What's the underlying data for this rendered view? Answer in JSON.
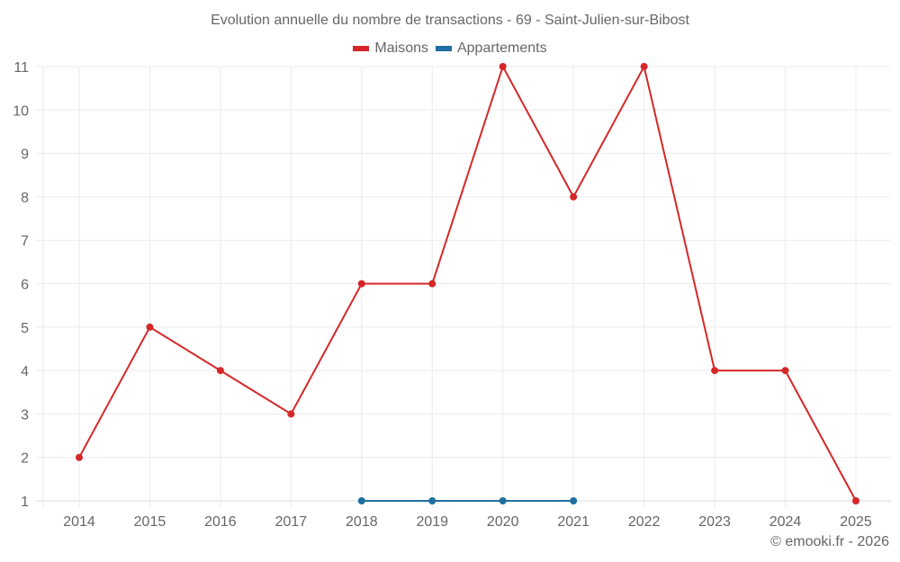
{
  "title": "Evolution annuelle du nombre de transactions - 69 - Saint-Julien-sur-Bibost",
  "credit": "© emooki.fr - 2026",
  "legend": [
    {
      "label": "Maisons",
      "color": "#d62728"
    },
    {
      "label": "Appartements",
      "color": "#1f6fa0"
    }
  ],
  "chart_data": {
    "type": "line",
    "title": "Evolution annuelle du nombre de transactions - 69 - Saint-Julien-sur-Bibost",
    "xlabel": "",
    "ylabel": "",
    "x": [
      2014,
      2015,
      2016,
      2017,
      2018,
      2019,
      2020,
      2021,
      2022,
      2023,
      2024,
      2025
    ],
    "ylim": [
      1,
      11
    ],
    "yticks": [
      1,
      2,
      3,
      4,
      5,
      6,
      7,
      8,
      9,
      10,
      11
    ],
    "grid": true,
    "legend_position": "top",
    "series": [
      {
        "name": "Maisons",
        "color": "#d62728",
        "values": [
          2,
          5,
          4,
          3,
          6,
          6,
          11,
          8,
          11,
          4,
          4,
          1
        ]
      },
      {
        "name": "Appartements",
        "color": "#1f6fa0",
        "values": [
          null,
          null,
          null,
          null,
          1,
          1,
          1,
          1,
          null,
          null,
          null,
          null
        ]
      }
    ]
  }
}
